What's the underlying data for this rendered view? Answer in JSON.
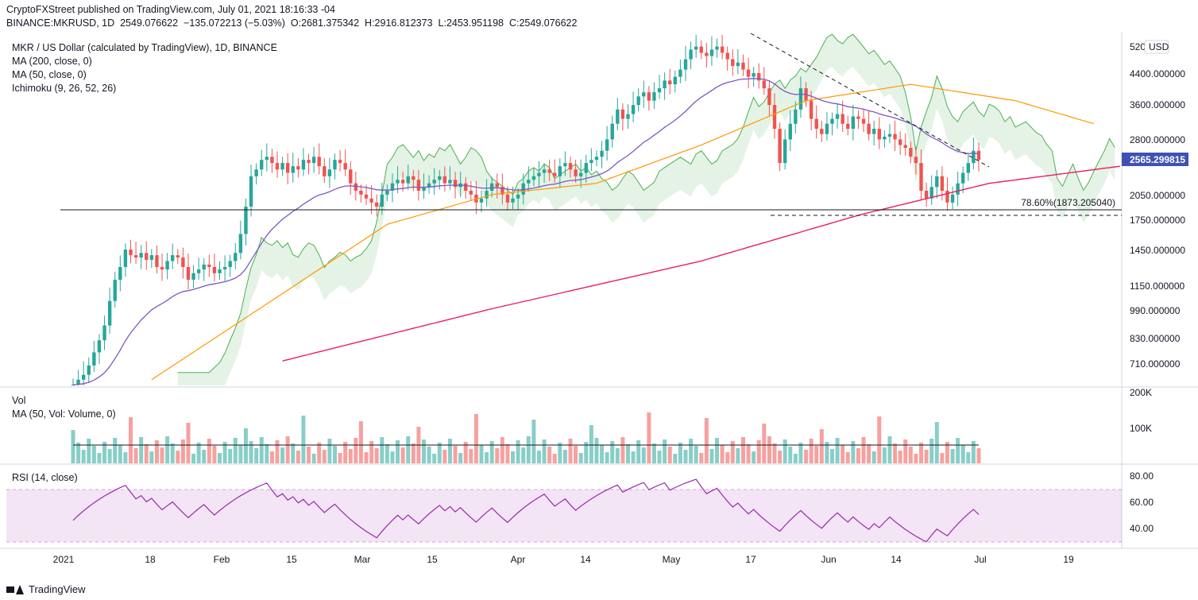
{
  "header": {
    "publisher_line": "CryptoFXStreet published on TradingView.com, July 01, 2021 18:16:33 -04",
    "symbol": "BINANCE:MKRUSD, 1D",
    "last": "2549.076622",
    "change": "−135.072213 (−5.03%)",
    "o_label": "O:",
    "o": "2681.375342",
    "h_label": "H:",
    "h": "2916.812373",
    "l_label": "L:",
    "l": "2453.951198",
    "c_label": "C:",
    "c": "2549.076622"
  },
  "legend": {
    "title": "MKR / US Dollar (calculated by TradingView), 1D, BINANCE",
    "ma200": "MA (200, close, 0)",
    "ma50": "MA (50, close, 0)",
    "ichimoku": "Ichimoku (9, 26, 52, 26)",
    "vol": "Vol",
    "vol_ma": "MA (50, Vol: Volume, 0)",
    "rsi": "RSI (14, close)"
  },
  "colors": {
    "up": "#26a69a",
    "down": "#ef5350",
    "ma200": "#e91e63",
    "ma50": "#ff9800",
    "kijun": "#7e57c2",
    "span": "#4caf50",
    "cloud_bear": "rgba(239,83,80,0.15)",
    "cloud_bull": "rgba(76,175,80,0.15)",
    "rsi": "#9c27b0",
    "rsi_band": "rgba(156,39,176,0.12)",
    "price_badge": "#3f51b5"
  },
  "chart_data": [
    {
      "type": "candlestick",
      "title": "MKR / US Dollar (calculated by TradingView), 1D, BINANCE",
      "scale": "log",
      "currency": "USD",
      "y_ticks": [
        "520",
        "4400.000000",
        "3600.000000",
        "2800.000000",
        "2050.000000",
        "1750.000000",
        "1450.000000",
        "1150.000000",
        "990.000000",
        "830.000000",
        "710.000000"
      ],
      "x_ticks": [
        "2021",
        "18",
        "Feb",
        "15",
        "Mar",
        "15",
        "Apr",
        "14",
        "May",
        "17",
        "Jun",
        "14",
        "Jul",
        "19"
      ],
      "current_price_label": "2565.299815",
      "fib_label": "78.60%(1873.205040)",
      "fib_level": 1873.20504,
      "support_level": 1790,
      "series_closes": [
        620,
        640,
        660,
        700,
        760,
        820,
        900,
        1050,
        1200,
        1300,
        1450,
        1400,
        1380,
        1420,
        1360,
        1400,
        1300,
        1280,
        1350,
        1400,
        1380,
        1300,
        1200,
        1250,
        1280,
        1320,
        1300,
        1250,
        1280,
        1300,
        1350,
        1420,
        1600,
        1900,
        2300,
        2400,
        2550,
        2600,
        2500,
        2400,
        2500,
        2350,
        2450,
        2400,
        2550,
        2500,
        2600,
        2450,
        2300,
        2400,
        2550,
        2500,
        2400,
        2200,
        2100,
        2050,
        2000,
        1950,
        1900,
        2050,
        2100,
        2200,
        2250,
        2200,
        2300,
        2250,
        2100,
        2150,
        2200,
        2250,
        2300,
        2200,
        2250,
        2150,
        2200,
        2100,
        2050,
        1950,
        2000,
        2100,
        2200,
        2150,
        2050,
        1950,
        2000,
        2050,
        2200,
        2250,
        2300,
        2350,
        2400,
        2350,
        2300,
        2450,
        2500,
        2400,
        2300,
        2350,
        2500,
        2550,
        2600,
        2700,
        2900,
        3200,
        3500,
        3300,
        3400,
        3600,
        3800,
        3900,
        3700,
        3900,
        4000,
        4200,
        4100,
        4300,
        4500,
        4800,
        5100,
        5200,
        5000,
        4900,
        5100,
        5200,
        5000,
        4800,
        4600,
        4700,
        4500,
        4300,
        4400,
        4200,
        4000,
        3600,
        3100,
        2500,
        2900,
        3200,
        3500,
        4000,
        3700,
        3300,
        3100,
        3000,
        3200,
        3300,
        3400,
        3200,
        3100,
        3350,
        3300,
        3200,
        3000,
        3100,
        2900,
        2950,
        3000,
        2900,
        2800,
        2750,
        2600,
        2500,
        2100,
        2000,
        2150,
        2300,
        2100,
        1950,
        2050,
        2200,
        2350,
        2500,
        2700,
        2549
      ],
      "ma200": [
        {
          "i": 40,
          "v": 720
        },
        {
          "i": 80,
          "v": 1000
        },
        {
          "i": 120,
          "v": 1350
        },
        {
          "i": 150,
          "v": 1800
        },
        {
          "i": 175,
          "v": 2200
        },
        {
          "i": 200,
          "v": 2450
        }
      ],
      "ma50": [
        {
          "i": 15,
          "v": 640
        },
        {
          "i": 40,
          "v": 1100
        },
        {
          "i": 60,
          "v": 1700
        },
        {
          "i": 80,
          "v": 2050
        },
        {
          "i": 100,
          "v": 2200
        },
        {
          "i": 120,
          "v": 2800
        },
        {
          "i": 140,
          "v": 3700
        },
        {
          "i": 160,
          "v": 4100
        },
        {
          "i": 180,
          "v": 3700
        },
        {
          "i": 195,
          "v": 3200
        }
      ]
    },
    {
      "type": "bar",
      "title": "Vol",
      "y_ticks": [
        "200K",
        "100K"
      ]
    },
    {
      "type": "line",
      "title": "RSI (14, close)",
      "y_ticks": [
        "80.00",
        "60.00",
        "40.00"
      ],
      "band": [
        30,
        70
      ]
    }
  ],
  "footer": {
    "brand": "TradingView"
  }
}
